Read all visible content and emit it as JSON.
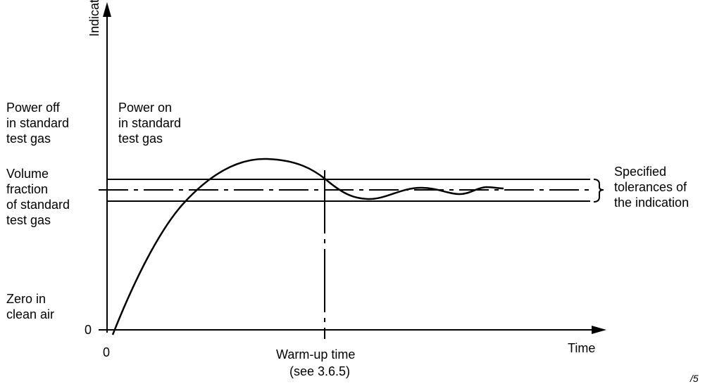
{
  "axes": {
    "y_label": "Indication",
    "x_label": "Time",
    "origin_y": "0",
    "origin_x": "0"
  },
  "labels": {
    "power_off": "Power off\nin standard\ntest gas",
    "power_on": "Power on\nin standard\ntest gas",
    "volume_fraction": "Volume\nfraction\nof standard\ntest gas",
    "zero": "Zero in\nclean air",
    "tolerances": "Specified\ntolerances of\nthe indication",
    "warmup": "Warm-up time",
    "warmup_ref": "(see 3.6.5)",
    "corner_text": "/5"
  }
}
